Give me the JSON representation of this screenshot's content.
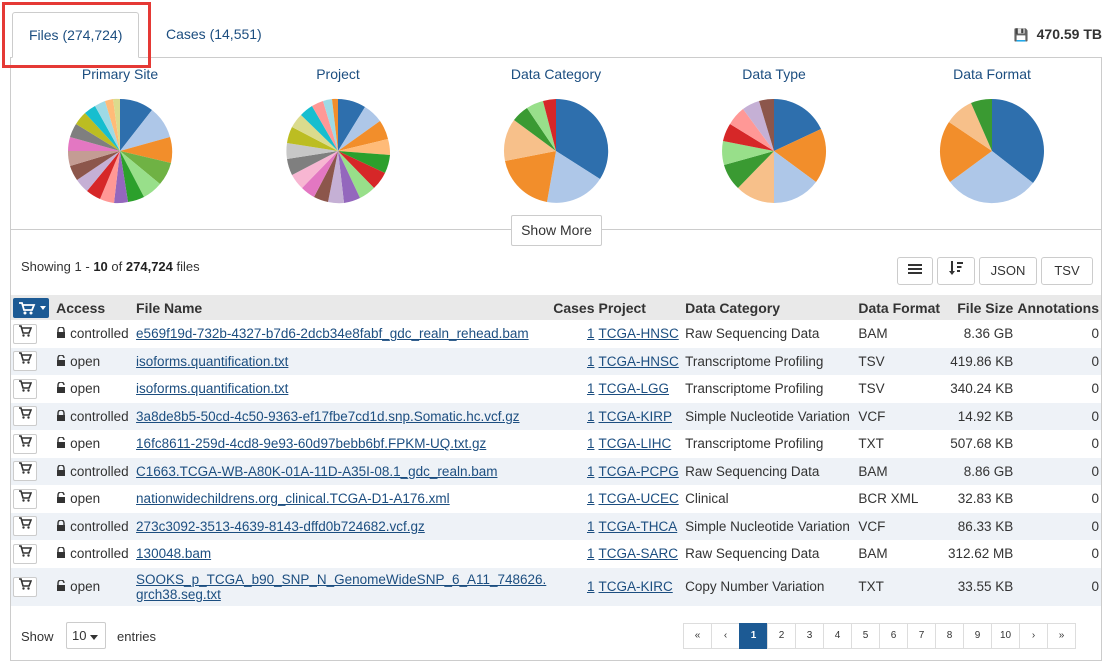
{
  "tabs": {
    "files_label": "Files (274,724)",
    "cases_label": "Cases (14,551)"
  },
  "total_size": "470.59 TB",
  "charts": [
    {
      "title": "Primary Site"
    },
    {
      "title": "Project"
    },
    {
      "title": "Data Category"
    },
    {
      "title": "Data Type"
    },
    {
      "title": "Data Format"
    }
  ],
  "show_more_label": "Show More",
  "showing": {
    "prefix": "Showing",
    "start": "1",
    "dash": "-",
    "end": "10",
    "of": "of",
    "total": "274,724",
    "suffix": "files"
  },
  "toolbar": {
    "json_label": "JSON",
    "tsv_label": "TSV"
  },
  "table": {
    "headers": [
      "Access",
      "File Name",
      "Cases",
      "Project",
      "Data Category",
      "Data Format",
      "File Size",
      "Annotations"
    ],
    "rows": [
      {
        "access": "controlled",
        "file": "e569f19d-732b-4327-b7d6-2dcb34e8fabf_gdc_realn_rehead.bam",
        "cases": "1",
        "project": "TCGA-HNSC",
        "category": "Raw Sequencing Data",
        "format": "BAM",
        "size": "8.36 GB",
        "annotations": "0"
      },
      {
        "access": "open",
        "file": "isoforms.quantification.txt",
        "cases": "1",
        "project": "TCGA-HNSC",
        "category": "Transcriptome Profiling",
        "format": "TSV",
        "size": "419.86 KB",
        "annotations": "0"
      },
      {
        "access": "open",
        "file": "isoforms.quantification.txt",
        "cases": "1",
        "project": "TCGA-LGG",
        "category": "Transcriptome Profiling",
        "format": "TSV",
        "size": "340.24 KB",
        "annotations": "0"
      },
      {
        "access": "controlled",
        "file": "3a8de8b5-50cd-4c50-9363-ef17fbe7cd1d.snp.Somatic.hc.vcf.gz",
        "cases": "1",
        "project": "TCGA-KIRP",
        "category": "Simple Nucleotide Variation",
        "format": "VCF",
        "size": "14.92 KB",
        "annotations": "0"
      },
      {
        "access": "open",
        "file": "16fc8611-259d-4cd8-9e93-60d97bebb6bf.FPKM-UQ.txt.gz",
        "cases": "1",
        "project": "TCGA-LIHC",
        "category": "Transcriptome Profiling",
        "format": "TXT",
        "size": "507.68 KB",
        "annotations": "0"
      },
      {
        "access": "controlled",
        "file": "C1663.TCGA-WB-A80K-01A-11D-A35I-08.1_gdc_realn.bam",
        "cases": "1",
        "project": "TCGA-PCPG",
        "category": "Raw Sequencing Data",
        "format": "BAM",
        "size": "8.86 GB",
        "annotations": "0"
      },
      {
        "access": "open",
        "file": "nationwidechildrens.org_clinical.TCGA-D1-A176.xml",
        "cases": "1",
        "project": "TCGA-UCEC",
        "category": "Clinical",
        "format": "BCR XML",
        "size": "32.83 KB",
        "annotations": "0"
      },
      {
        "access": "controlled",
        "file": "273c3092-3513-4639-8143-dffd0b724682.vcf.gz",
        "cases": "1",
        "project": "TCGA-THCA",
        "category": "Simple Nucleotide Variation",
        "format": "VCF",
        "size": "86.33 KB",
        "annotations": "0"
      },
      {
        "access": "controlled",
        "file": "130048.bam",
        "cases": "1",
        "project": "TCGA-SARC",
        "category": "Raw Sequencing Data",
        "format": "BAM",
        "size": "312.62 MB",
        "annotations": "0"
      },
      {
        "access": "open",
        "file": "SOOKS_p_TCGA_b90_SNP_N_GenomeWideSNP_6_A11_748626.",
        "file2": "grch38.seg.txt",
        "cases": "1",
        "project": "TCGA-KIRC",
        "category": "Copy Number Variation",
        "format": "TXT",
        "size": "33.55 KB",
        "annotations": "0"
      }
    ]
  },
  "footer": {
    "show_label": "Show",
    "entries_value": "10",
    "entries_label": "entries",
    "pages": [
      "«",
      "‹",
      "1",
      "2",
      "3",
      "4",
      "5",
      "6",
      "7",
      "8",
      "9",
      "10",
      "›",
      "»"
    ],
    "active_page": "1"
  },
  "colors": {
    "accent": "#1c5a94",
    "link": "#1c4e80",
    "highlight": "#e53935"
  }
}
